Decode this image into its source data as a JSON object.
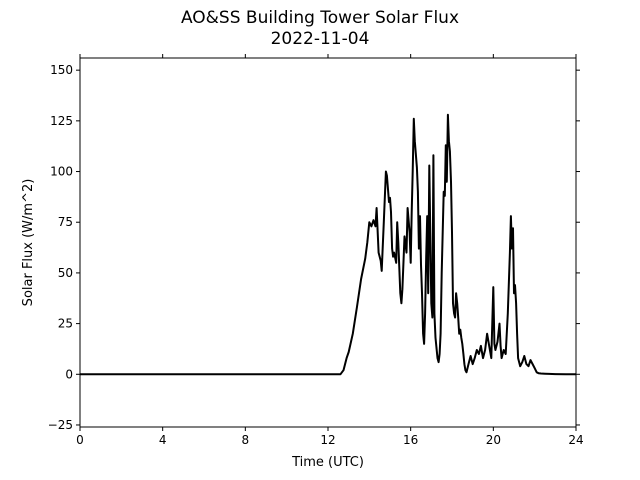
{
  "chart_data": {
    "type": "line",
    "title": "AO&SS Building Tower Solar Flux",
    "subtitle": "2022-11-04",
    "xlabel": "Time (UTC)",
    "ylabel": "Solar Flux (W/m^2)",
    "xlim": [
      0,
      24
    ],
    "ylim": [
      -26,
      156
    ],
    "xticks": [
      0,
      4,
      8,
      12,
      16,
      20,
      24
    ],
    "yticks": [
      -25,
      0,
      25,
      50,
      75,
      100,
      125,
      150
    ],
    "grid": false,
    "legend": "none",
    "series_color": "#000000",
    "series": [
      {
        "x": [
          0,
          4,
          8,
          12,
          12.6,
          12.75,
          12.9,
          13.0,
          13.2,
          13.4,
          13.6,
          13.8,
          13.9,
          14.0,
          14.1,
          14.2,
          14.3,
          14.35,
          14.45,
          14.55,
          14.6,
          14.7,
          14.8,
          14.85,
          14.95,
          15.0,
          15.05,
          15.1,
          15.15,
          15.2,
          15.3,
          15.35,
          15.4,
          15.5,
          15.55,
          15.6,
          15.7,
          15.8,
          15.85,
          15.95,
          16.0,
          16.05,
          16.1,
          16.15,
          16.2,
          16.3,
          16.35,
          16.4,
          16.45,
          16.5,
          16.55,
          16.6,
          16.65,
          16.7,
          16.75,
          16.8,
          16.85,
          16.9,
          17.0,
          17.05,
          17.1,
          17.15,
          17.2,
          17.3,
          17.35,
          17.4,
          17.45,
          17.5,
          17.6,
          17.65,
          17.7,
          17.75,
          17.8,
          17.85,
          17.9,
          17.95,
          18.0,
          18.05,
          18.1,
          18.15,
          18.2,
          18.25,
          18.3,
          18.35,
          18.4,
          18.45,
          18.5,
          18.55,
          18.6,
          18.65,
          18.7,
          18.8,
          18.9,
          19.0,
          19.1,
          19.2,
          19.3,
          19.4,
          19.5,
          19.6,
          19.7,
          19.8,
          19.9,
          20.0,
          20.05,
          20.1,
          20.2,
          20.3,
          20.35,
          20.4,
          20.5,
          20.6,
          20.7,
          20.8,
          20.85,
          20.9,
          20.95,
          21.0,
          21.05,
          21.1,
          21.15,
          21.2,
          21.3,
          21.4,
          21.5,
          21.6,
          21.7,
          21.8,
          21.9,
          22.0,
          22.1,
          22.2,
          22.3,
          22.5,
          22.7,
          23.0,
          23.5,
          24.0
        ],
        "y": [
          0,
          0,
          0,
          0,
          0,
          2,
          8,
          11,
          20,
          33,
          47,
          57,
          65,
          75,
          73,
          76,
          73,
          82,
          60,
          56,
          51,
          75,
          100,
          98,
          85,
          87,
          80,
          62,
          58,
          60,
          55,
          75,
          65,
          40,
          35,
          42,
          68,
          60,
          82,
          70,
          55,
          80,
          100,
          126,
          115,
          102,
          90,
          62,
          78,
          54,
          40,
          20,
          15,
          30,
          58,
          78,
          40,
          103,
          35,
          28,
          108,
          30,
          18,
          8,
          6,
          10,
          20,
          50,
          90,
          88,
          113,
          95,
          128,
          115,
          110,
          95,
          70,
          35,
          30,
          28,
          40,
          35,
          28,
          20,
          22,
          18,
          15,
          10,
          5,
          2,
          1,
          5,
          9,
          5,
          8,
          12,
          10,
          14,
          8,
          12,
          20,
          14,
          8,
          43,
          15,
          12,
          16,
          25,
          14,
          8,
          12,
          10,
          30,
          60,
          78,
          62,
          72,
          40,
          44,
          35,
          20,
          8,
          4,
          6,
          9,
          5,
          4,
          7,
          5,
          3,
          1,
          0.5,
          0.4,
          0.3,
          0.2,
          0.1,
          0,
          0
        ]
      }
    ]
  }
}
